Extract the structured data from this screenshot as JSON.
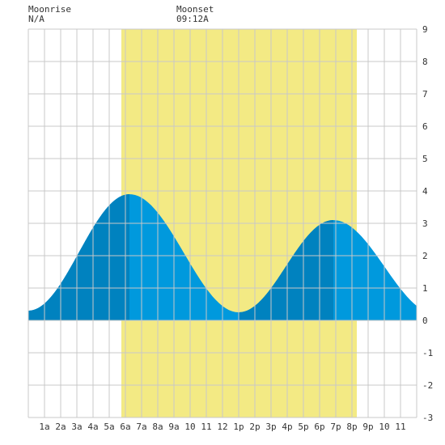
{
  "moonrise": {
    "label": "Moonrise",
    "time": "N/A"
  },
  "moonset": {
    "label": "Moonset",
    "time": "09:12A"
  },
  "colors": {
    "daylight": "#f3ea84",
    "tide_light": "#0099dd",
    "tide_dark": "#0082bf",
    "grid": "#c8c8c8",
    "background": "#ffffff"
  },
  "chart_data": {
    "type": "area",
    "x_unit": "hour of day",
    "xlim": [
      0,
      24
    ],
    "ylim": [
      -3,
      9
    ],
    "y_ticks": [
      "-3",
      "-2",
      "-1",
      "0",
      "1",
      "2",
      "3",
      "4",
      "5",
      "6",
      "7",
      "8",
      "9"
    ],
    "x_ticks": [
      {
        "hour": 1,
        "label": "1a"
      },
      {
        "hour": 2,
        "label": "2a"
      },
      {
        "hour": 3,
        "label": "3a"
      },
      {
        "hour": 4,
        "label": "4a"
      },
      {
        "hour": 5,
        "label": "5a"
      },
      {
        "hour": 6,
        "label": "6a"
      },
      {
        "hour": 7,
        "label": "7a"
      },
      {
        "hour": 8,
        "label": "8a"
      },
      {
        "hour": 9,
        "label": "9a"
      },
      {
        "hour": 10,
        "label": "10"
      },
      {
        "hour": 11,
        "label": "11"
      },
      {
        "hour": 12,
        "label": "12"
      },
      {
        "hour": 13,
        "label": "1p"
      },
      {
        "hour": 14,
        "label": "2p"
      },
      {
        "hour": 15,
        "label": "3p"
      },
      {
        "hour": 16,
        "label": "4p"
      },
      {
        "hour": 17,
        "label": "5p"
      },
      {
        "hour": 18,
        "label": "6p"
      },
      {
        "hour": 19,
        "label": "7p"
      },
      {
        "hour": 20,
        "label": "8p"
      },
      {
        "hour": 21,
        "label": "9p"
      },
      {
        "hour": 22,
        "label": "10"
      },
      {
        "hour": 23,
        "label": "11"
      }
    ],
    "daylight": {
      "start": 5.75,
      "end": 20.3
    },
    "tide_extremes": [
      {
        "hour": 0.0,
        "height": 0.3
      },
      {
        "hour": 6.25,
        "height": 3.9
      },
      {
        "hour": 13.0,
        "height": 0.25
      },
      {
        "hour": 18.85,
        "height": 3.1
      },
      {
        "hour": 25.2,
        "height": 0.2
      }
    ],
    "dark_bands": [
      [
        0,
        6.25
      ],
      [
        13.0,
        18.85
      ]
    ]
  }
}
